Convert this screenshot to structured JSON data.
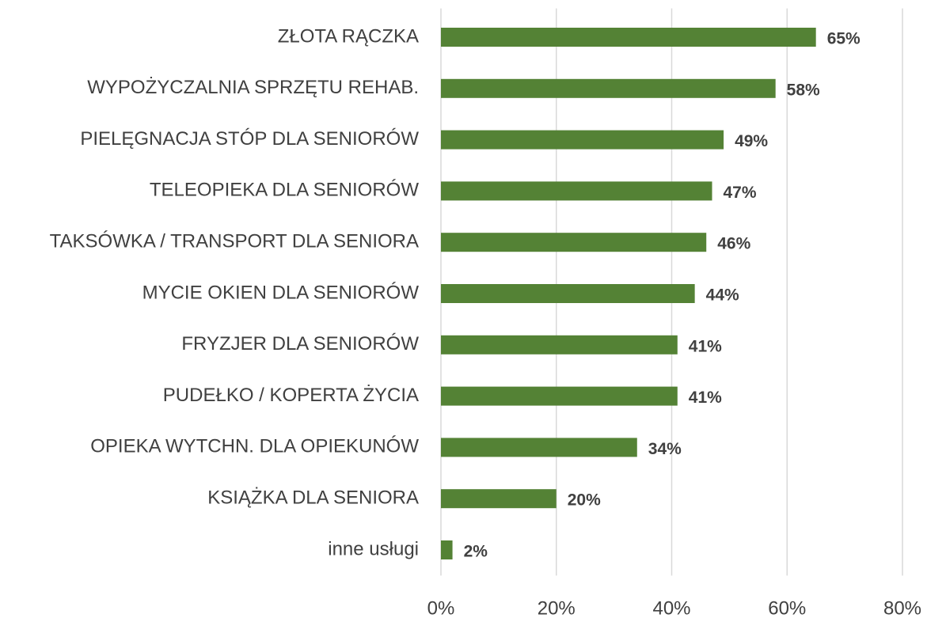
{
  "chart_data": {
    "type": "bar",
    "orientation": "horizontal",
    "categories": [
      "ZŁOTA RĄCZKA",
      "WYPOŻYCZALNIA SPRZĘTU REHAB.",
      "PIELĘGNACJA STÓP DLA SENIORÓW",
      "TELEOPIEKA DLA SENIORÓW",
      "TAKSÓWKA / TRANSPORT DLA SENIORA",
      "MYCIE OKIEN DLA SENIORÓW",
      "FRYZJER DLA SENIORÓW",
      "PUDEŁKO / KOPERTA ŻYCIA",
      "OPIEKA WYTCHN. DLA OPIEKUNÓW",
      "KSIĄŻKA DLA SENIORA",
      "inne usługi"
    ],
    "values": [
      65,
      58,
      49,
      47,
      46,
      44,
      41,
      41,
      34,
      20,
      2
    ],
    "value_labels": [
      "65%",
      "58%",
      "49%",
      "47%",
      "46%",
      "44%",
      "41%",
      "41%",
      "34%",
      "20%",
      "2%"
    ],
    "color": "#548235",
    "xlim": [
      0,
      80
    ],
    "xticks": [
      {
        "value": 0,
        "label": "0%"
      },
      {
        "value": 20,
        "label": "20%"
      },
      {
        "value": 40,
        "label": "40%"
      },
      {
        "value": 60,
        "label": "60%"
      },
      {
        "value": 80,
        "label": "80%"
      }
    ],
    "grid": true
  }
}
